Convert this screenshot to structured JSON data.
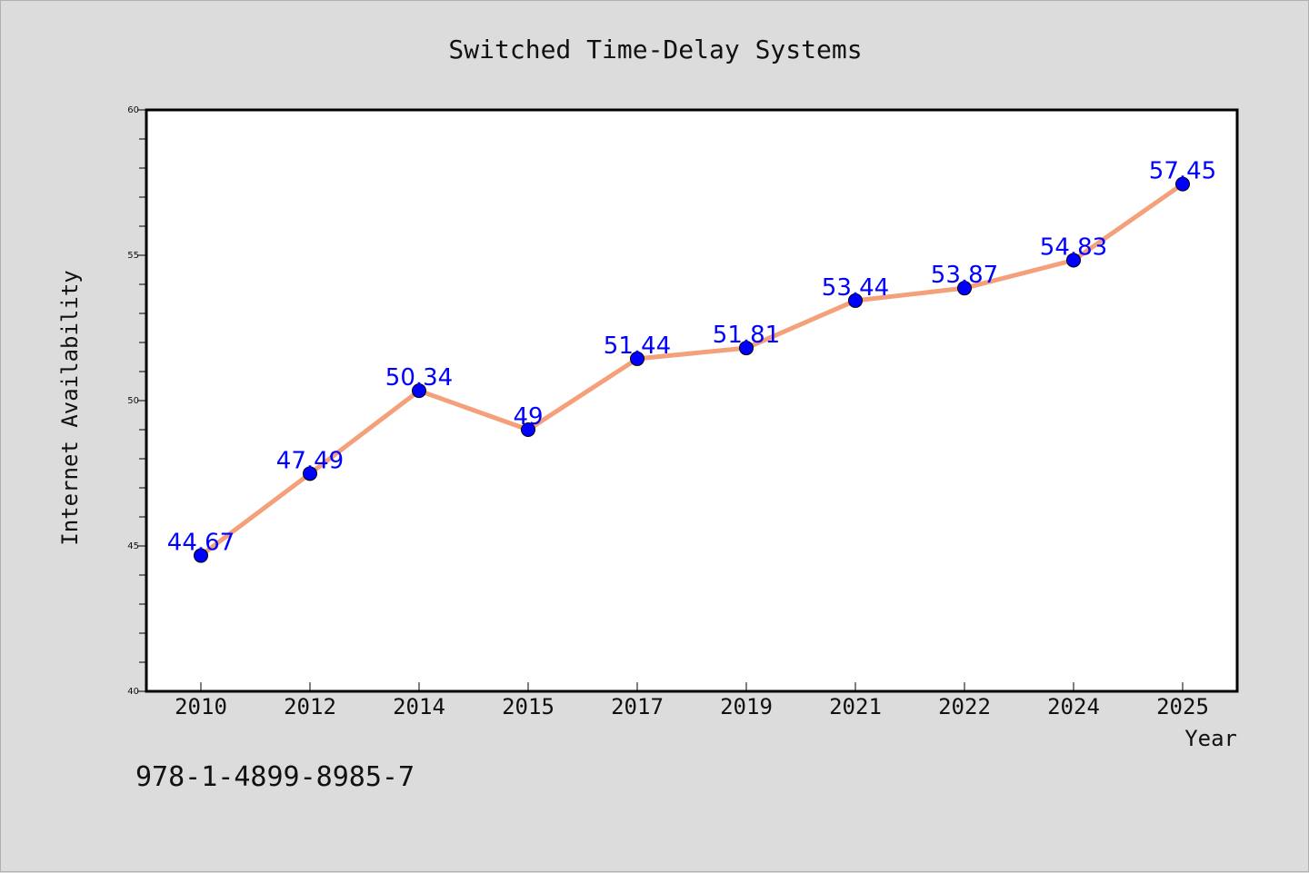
{
  "chart_data": {
    "type": "line",
    "title": "Switched Time-Delay Systems",
    "xlabel": "Year",
    "ylabel": "Internet Availability",
    "categories": [
      "2010",
      "2012",
      "2014",
      "2015",
      "2017",
      "2019",
      "2021",
      "2022",
      "2024",
      "2025"
    ],
    "series": [
      {
        "values": [
          44.67,
          47.49,
          50.34,
          49,
          51.44,
          51.81,
          53.44,
          53.87,
          54.83,
          57.45
        ],
        "labels": [
          "44.67",
          "47.49",
          "50.34",
          "49",
          "51.44",
          "51.81",
          "53.44",
          "53.87",
          "54.83",
          "57.45"
        ],
        "line_color": "#f4a07a",
        "marker_color": "#0000ff"
      }
    ],
    "ylim": [
      40,
      60
    ],
    "yticks": [
      40,
      45,
      50,
      55,
      60
    ],
    "grid": false,
    "legend": "none"
  },
  "footer": {
    "isbn": "978-1-4899-8985-7"
  }
}
